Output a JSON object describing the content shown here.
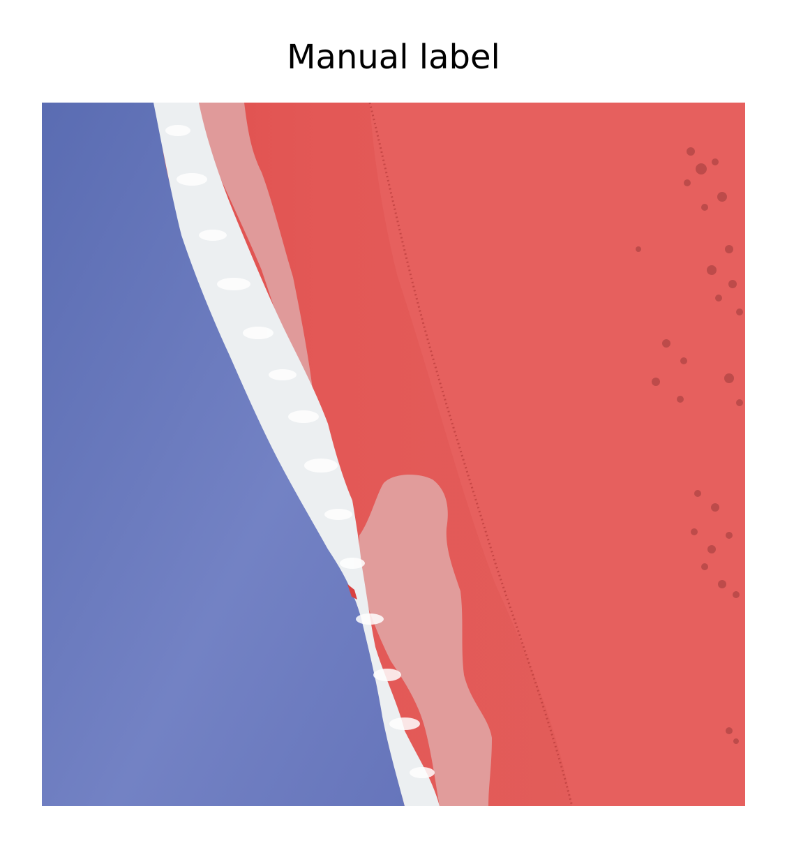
{
  "figure": {
    "title": "Manual label"
  },
  "segmentation_overlay": {
    "classes": [
      {
        "name": "water",
        "color": "#6272b8"
      },
      {
        "name": "surf",
        "color": "#eef0f2"
      },
      {
        "name": "wet-sand",
        "color": "#e09a9a"
      },
      {
        "name": "land",
        "color": "#e45c5a"
      }
    ]
  }
}
